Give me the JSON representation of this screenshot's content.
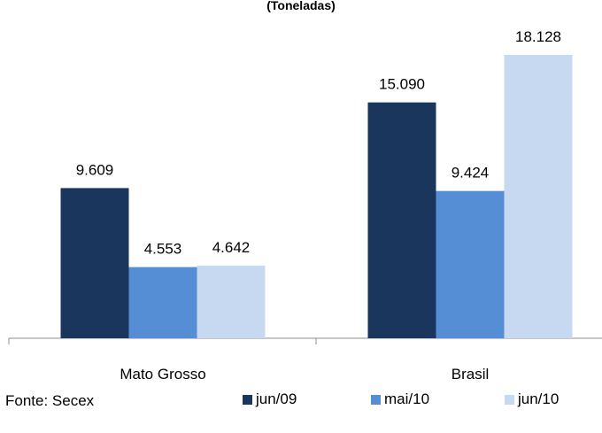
{
  "chart_data": {
    "type": "bar",
    "subtitle": "(Toneladas)",
    "categories": [
      "Mato Grosso",
      "Brasil"
    ],
    "series": [
      {
        "name": "jun/09",
        "color": "#1B365D",
        "values": [
          9609,
          15090
        ],
        "labels": [
          "9.609",
          "15.090"
        ]
      },
      {
        "name": "mai/10",
        "color": "#558ED5",
        "values": [
          4553,
          9424
        ],
        "labels": [
          "4.553",
          "9.424"
        ]
      },
      {
        "name": "jun/10",
        "color": "#C6D9F1",
        "values": [
          4642,
          18128
        ],
        "labels": [
          "4.642",
          "18.128"
        ]
      }
    ],
    "ylim": [
      0,
      20000
    ],
    "grid": false,
    "legend_placement": "bottom"
  },
  "footer": {
    "source": "Fonte: Secex"
  }
}
